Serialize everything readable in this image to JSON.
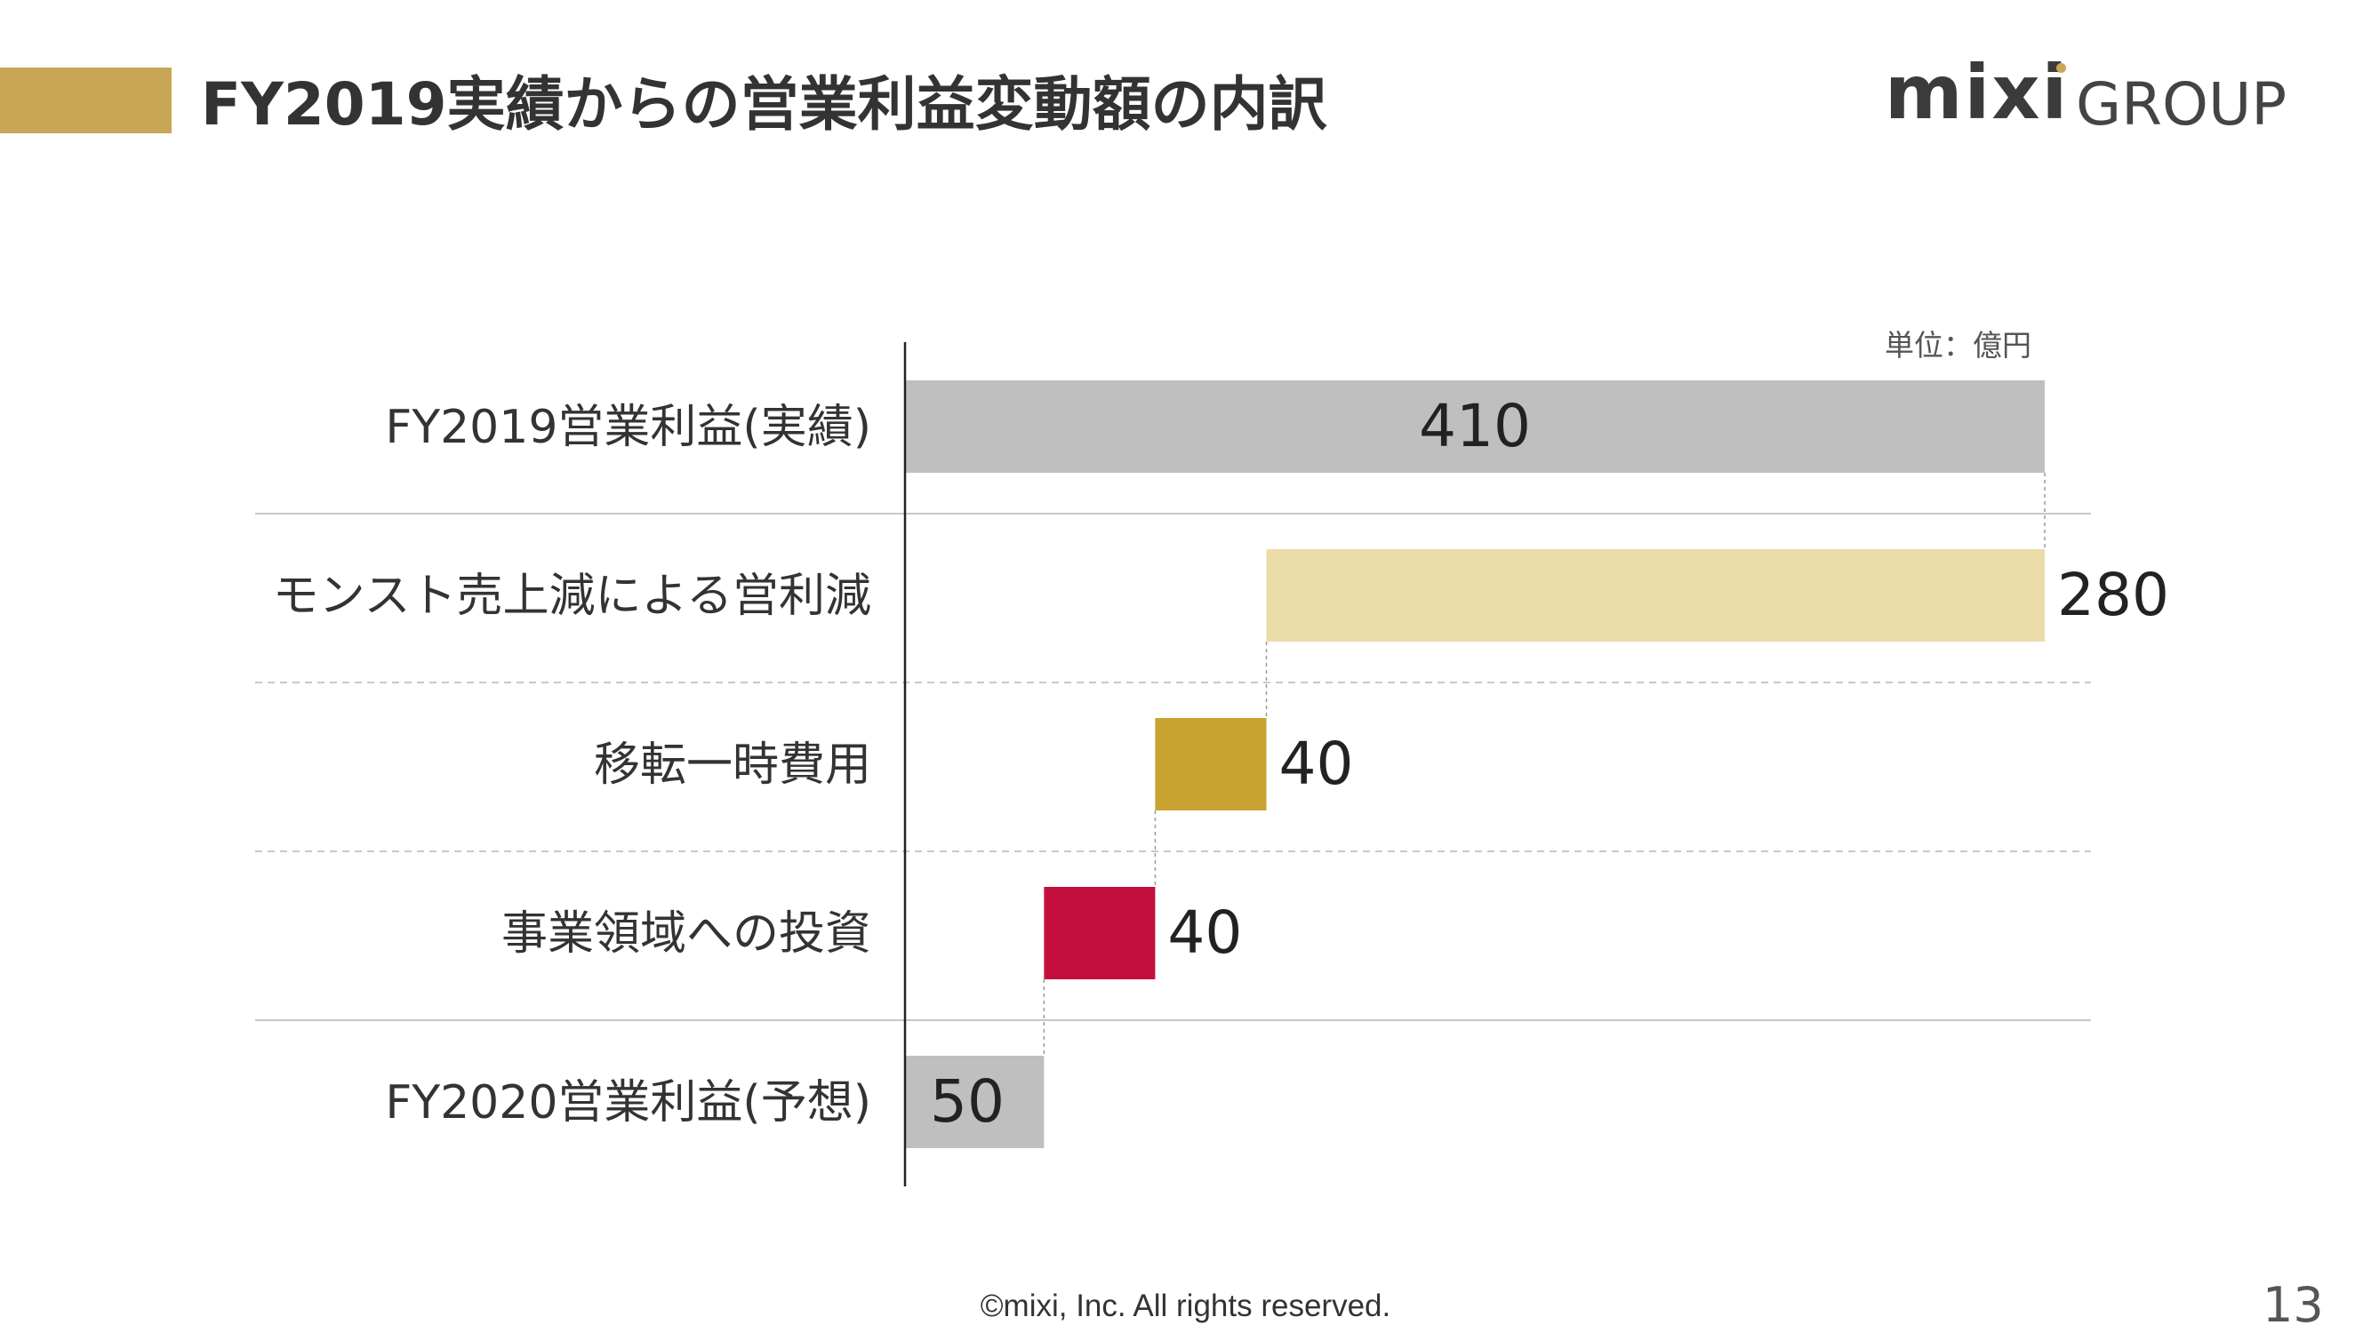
{
  "slide": {
    "title": "FY2019実績からの営業利益変動額の内訳",
    "accent_color": "#c9a655",
    "logo_mixi": "mixi",
    "logo_group": "GROUP",
    "logo_dot_color": "#c9a655",
    "footer": "©mixi, Inc. All rights reserved.",
    "page_number": "13"
  },
  "chart_data": {
    "type": "bar",
    "subtype": "waterfall",
    "orientation": "horizontal",
    "unit_label": "単位：億円",
    "xlim": [
      0,
      410
    ],
    "categories": [
      "FY2019営業利益(実績)",
      "モンスト売上減による営利減",
      "移転一時費用",
      "事業領域への投資",
      "FY2020営業利益(予想)"
    ],
    "values": [
      410,
      280,
      40,
      40,
      50
    ],
    "labels": [
      "410",
      "280",
      "40",
      "40",
      "50"
    ],
    "kinds": [
      "total",
      "decrease",
      "decrease",
      "decrease",
      "total"
    ],
    "colors": [
      "#bfbfbf",
      "#ebdcaa",
      "#c9a22f",
      "#c40f3c",
      "#bfbfbf"
    ],
    "grid": {
      "row_separators": true,
      "styles": [
        "solid",
        "dashed",
        "dashed",
        "solid"
      ],
      "color": "#c8c8c8"
    },
    "connectors": true
  }
}
